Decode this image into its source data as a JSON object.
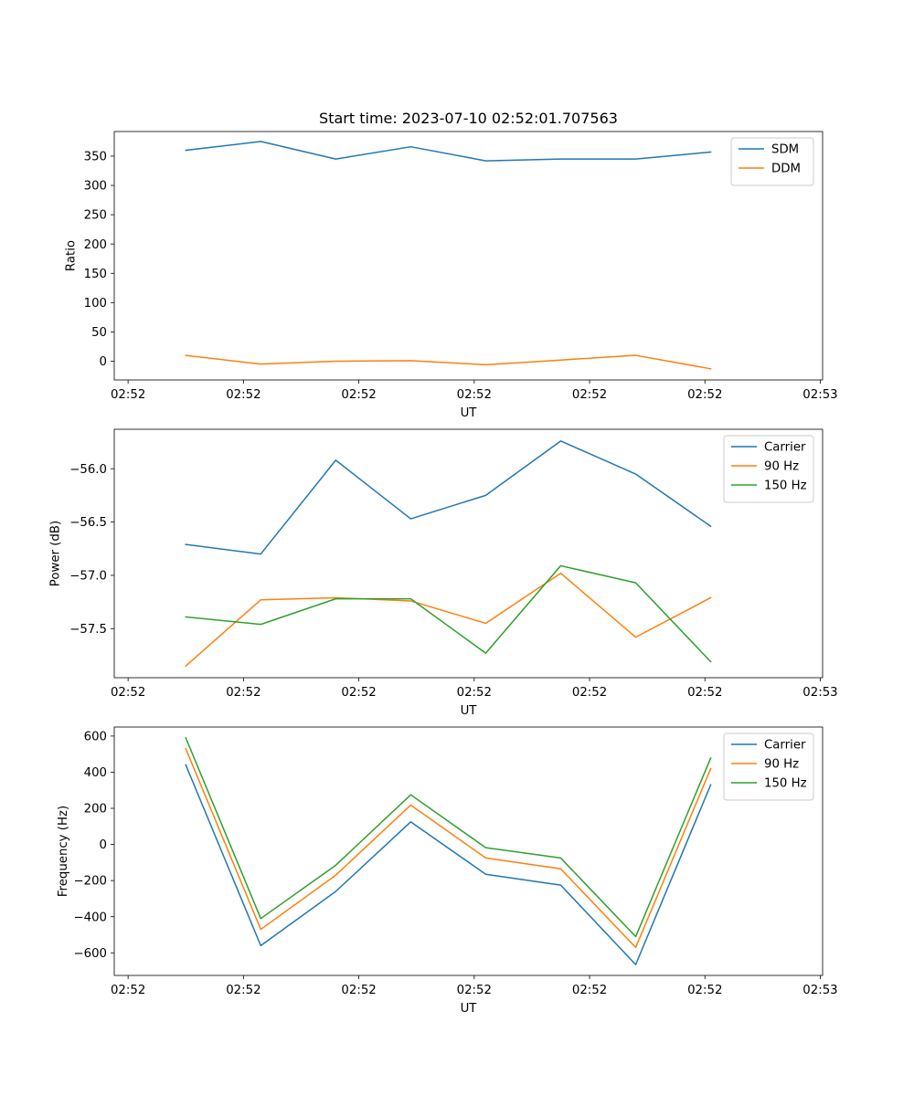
{
  "chart_data": [
    {
      "type": "line",
      "title": "Start time: 2023-07-10 02:52:01.707563",
      "xlabel": "UT",
      "ylabel": "Ratio",
      "x_tick_labels": [
        "02:52",
        "02:52",
        "02:52",
        "02:52",
        "02:52",
        "02:52",
        "02:53"
      ],
      "x_ticks": [
        0,
        1,
        2,
        3,
        4,
        5,
        6
      ],
      "xlim": [
        -0.12,
        6.02
      ],
      "x": [
        0.5,
        1.15,
        1.8,
        2.45,
        3.1,
        3.75,
        4.4,
        5.05
      ],
      "ylim": [
        -32,
        392
      ],
      "y_ticks": [
        0,
        50,
        100,
        150,
        200,
        250,
        300,
        350
      ],
      "y_tick_labels": [
        "0",
        "50",
        "100",
        "150",
        "200",
        "250",
        "300",
        "350"
      ],
      "legend_position": "top-right",
      "series": [
        {
          "name": "SDM",
          "color": "#1f77b4",
          "values": [
            360,
            375,
            345,
            366,
            342,
            345,
            345,
            357
          ]
        },
        {
          "name": "DDM",
          "color": "#ff7f0e",
          "values": [
            10,
            -5,
            0,
            1,
            -6,
            2,
            10,
            -13
          ]
        }
      ]
    },
    {
      "type": "line",
      "title": "",
      "xlabel": "UT",
      "ylabel": "Power (dB)",
      "x_tick_labels": [
        "02:52",
        "02:52",
        "02:52",
        "02:52",
        "02:52",
        "02:52",
        "02:53"
      ],
      "x_ticks": [
        0,
        1,
        2,
        3,
        4,
        5,
        6
      ],
      "xlim": [
        -0.12,
        6.02
      ],
      "x": [
        0.5,
        1.15,
        1.8,
        2.45,
        3.1,
        3.75,
        4.4,
        5.05
      ],
      "ylim": [
        -57.96,
        -55.63
      ],
      "y_ticks": [
        -57.5,
        -57.0,
        -56.5,
        -56.0
      ],
      "y_tick_labels": [
        "−57.5",
        "−57.0",
        "−56.5",
        "−56.0"
      ],
      "legend_position": "top-right",
      "series": [
        {
          "name": "Carrier",
          "color": "#1f77b4",
          "values": [
            -56.71,
            -56.8,
            -55.92,
            -56.47,
            -56.25,
            -55.74,
            -56.05,
            -56.54
          ]
        },
        {
          "name": "90 Hz",
          "color": "#ff7f0e",
          "values": [
            -57.85,
            -57.23,
            -57.21,
            -57.24,
            -57.45,
            -56.98,
            -57.58,
            -57.21
          ]
        },
        {
          "name": "150 Hz",
          "color": "#2ca02c",
          "values": [
            -57.39,
            -57.46,
            -57.22,
            -57.22,
            -57.73,
            -56.91,
            -57.07,
            -57.81
          ]
        }
      ]
    },
    {
      "type": "line",
      "title": "",
      "xlabel": "UT",
      "ylabel": "Frequency (Hz)",
      "x_tick_labels": [
        "02:52",
        "02:52",
        "02:52",
        "02:52",
        "02:52",
        "02:52",
        "02:53"
      ],
      "x_ticks": [
        0,
        1,
        2,
        3,
        4,
        5,
        6
      ],
      "xlim": [
        -0.12,
        6.02
      ],
      "x": [
        0.5,
        1.15,
        1.8,
        2.45,
        3.1,
        3.75,
        4.4,
        5.05
      ],
      "ylim": [
        -725,
        650
      ],
      "y_ticks": [
        -600,
        -400,
        -200,
        0,
        200,
        400,
        600
      ],
      "y_tick_labels": [
        "−600",
        "−400",
        "−200",
        "0",
        "200",
        "400",
        "600"
      ],
      "legend_position": "top-right",
      "series": [
        {
          "name": "Carrier",
          "color": "#1f77b4",
          "values": [
            440,
            -560,
            -260,
            125,
            -165,
            -225,
            -665,
            330
          ]
        },
        {
          "name": "90 Hz",
          "color": "#ff7f0e",
          "values": [
            530,
            -470,
            -170,
            218,
            -75,
            -135,
            -570,
            420
          ]
        },
        {
          "name": "150 Hz",
          "color": "#2ca02c",
          "values": [
            590,
            -410,
            -115,
            275,
            -18,
            -75,
            -510,
            478
          ]
        }
      ]
    }
  ]
}
